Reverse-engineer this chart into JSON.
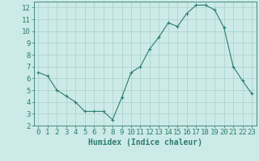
{
  "x": [
    0,
    1,
    2,
    3,
    4,
    5,
    6,
    7,
    8,
    9,
    10,
    11,
    12,
    13,
    14,
    15,
    16,
    17,
    18,
    19,
    20,
    21,
    22,
    23
  ],
  "y": [
    6.5,
    6.2,
    5.0,
    4.5,
    4.0,
    3.2,
    3.2,
    3.2,
    2.5,
    4.4,
    6.5,
    7.0,
    8.5,
    9.5,
    10.7,
    10.4,
    11.5,
    12.2,
    12.2,
    11.8,
    10.3,
    7.0,
    5.8,
    4.7
  ],
  "line_color": "#2d7d6f",
  "marker": "+",
  "marker_size": 3,
  "background_color": "#cceae7",
  "grid_color": "#aad0cc",
  "xlabel": "Humidex (Indice chaleur)",
  "xlim": [
    -0.5,
    23.5
  ],
  "ylim": [
    2,
    12.5
  ],
  "yticks": [
    2,
    3,
    4,
    5,
    6,
    7,
    8,
    9,
    10,
    11,
    12
  ],
  "xticks": [
    0,
    1,
    2,
    3,
    4,
    5,
    6,
    7,
    8,
    9,
    10,
    11,
    12,
    13,
    14,
    15,
    16,
    17,
    18,
    19,
    20,
    21,
    22,
    23
  ],
  "tick_color": "#2d7d6f",
  "font_color": "#2d7d6f",
  "xlabel_fontsize": 7,
  "tick_fontsize": 6.5
}
